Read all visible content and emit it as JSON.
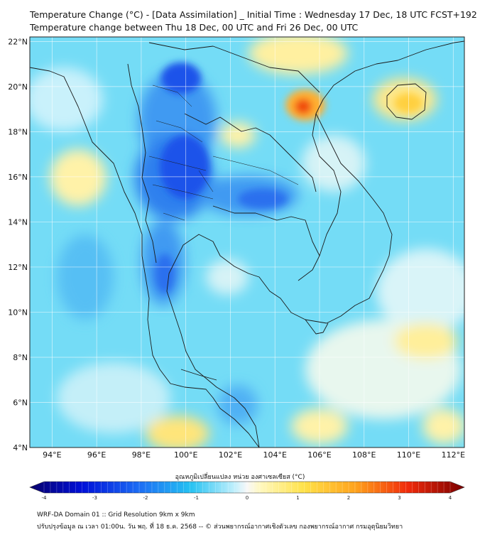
{
  "header": {
    "line1": "Temperature Change (°C) - [Data Assimilation] _ Initial Time : Wednesday 17 Dec, 18 UTC FCST+192",
    "line2": "Temperature change between Thu 18 Dec, 00 UTC and Fri 26 Dec, 00 UTC"
  },
  "map": {
    "lat_labels": [
      "22°N",
      "20°N",
      "18°N",
      "16°N",
      "14°N",
      "12°N",
      "10°N",
      "8°N",
      "6°N",
      "4°N"
    ],
    "lat_values": [
      22,
      20,
      18,
      16,
      14,
      12,
      10,
      8,
      6,
      4
    ],
    "lon_labels": [
      "94°E",
      "96°E",
      "98°E",
      "100°E",
      "102°E",
      "104°E",
      "106°E",
      "108°E",
      "110°E",
      "112°E"
    ],
    "lon_values": [
      94,
      96,
      98,
      100,
      102,
      104,
      106,
      108,
      110,
      112
    ],
    "lon_range": [
      93.0,
      112.5
    ],
    "lat_range": [
      4.0,
      22.2
    ],
    "background_color": "#74dcf6"
  },
  "colorbar": {
    "title": "อุณหภูมิเปลี่ยนแปลง หน่วย องศาเซลเซียส (°C)",
    "ticks": [
      "-4",
      "-3",
      "-2",
      "-1",
      "0",
      "1",
      "2",
      "3",
      "4"
    ],
    "tick_values": [
      -4,
      -3,
      -2,
      -1,
      0,
      1,
      2,
      3,
      4
    ],
    "range": [
      -4,
      4
    ]
  },
  "footer": {
    "line1": "WRF-DA Domain 01 :: Grid Resolution 9km x 9km",
    "line2": "ปรับปรุงข้อมูล ณ เวลา 01:00น. วัน พฤ. ที่ 18 ธ.ค. 2568 -- © ส่วนพยากรณ์อากาศเชิงตัวเลข กองพยากรณ์อากาศ กรมอุตุนิยมวิทยา"
  }
}
